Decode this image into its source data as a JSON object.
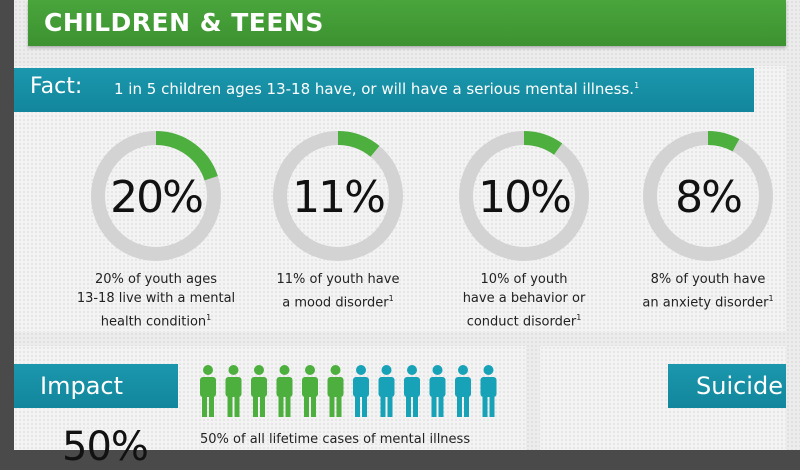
{
  "header": {
    "title": "CHILDREN & TEENS"
  },
  "fact": {
    "label": "Fact:",
    "text": "1 in 5 children ages 13-18 have, or will have a serious mental illness.",
    "footnote": "1"
  },
  "stats": [
    {
      "percent_label": "20%",
      "value": 20,
      "lines": [
        "20% of youth ages",
        "13-18 live with a mental",
        "health condition"
      ],
      "footnote": "1"
    },
    {
      "percent_label": "11%",
      "value": 11,
      "lines": [
        "11% of youth have",
        "a mood disorder"
      ],
      "footnote": "1"
    },
    {
      "percent_label": "10%",
      "value": 10,
      "lines": [
        "10% of youth",
        "have a behavior or",
        "conduct disorder"
      ],
      "footnote": "1"
    },
    {
      "percent_label": "8%",
      "value": 8,
      "lines": [
        "8% of youth have",
        "an anxiety disorder"
      ],
      "footnote": "1"
    }
  ],
  "impact": {
    "title": "Impact",
    "people_total": 12,
    "people_highlighted": 6,
    "big_percent": "50%",
    "text": "50% of all lifetime cases of mental illness"
  },
  "suicide": {
    "title": "Suicide"
  },
  "colors": {
    "green": "#4caf3e",
    "teal": "#17a2b8",
    "ring_gray": "#d3d3d3"
  },
  "icons": [
    "person-icon"
  ]
}
